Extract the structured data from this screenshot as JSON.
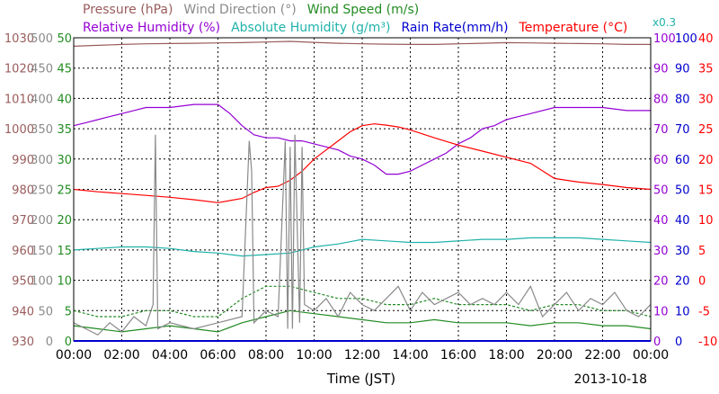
{
  "chart_data": {
    "type": "line",
    "legend_top": [
      {
        "label": "Pressure (hPa)",
        "color": "#9a5c5c"
      },
      {
        "label": "Wind Direction (°)",
        "color": "#8a8a8a"
      },
      {
        "label": "Wind Speed (m/s)",
        "color": "#228b22"
      }
    ],
    "legend_bottom": [
      {
        "label": "Relative Humidity (%)",
        "color": "#9400d3"
      },
      {
        "label": "Absolute Humidity (g/m³)",
        "color": "#20b2aa"
      },
      {
        "label": "Rain Rate(mm/h)",
        "color": "#0000cd"
      },
      {
        "label": "Temperature (°C)",
        "color": "#ff0000"
      }
    ],
    "abs_hum_scale_note": "x0.3",
    "xlabel": "Time (JST)",
    "date_label": "2013-10-18",
    "x_ticks": [
      "00:00",
      "02:00",
      "04:00",
      "06:00",
      "08:00",
      "10:00",
      "12:00",
      "14:00",
      "16:00",
      "18:00",
      "20:00",
      "22:00",
      "00:00"
    ],
    "grid": true,
    "axes": {
      "pressure": {
        "min": 930,
        "max": 1030,
        "ticks": [
          "1030",
          "1020",
          "1010",
          "1000",
          "990",
          "980",
          "970",
          "960",
          "950",
          "940",
          "930"
        ],
        "color": "#9a5c5c"
      },
      "wind_direction": {
        "min": 0,
        "max": 500,
        "ticks": [
          "500",
          "450",
          "400",
          "350",
          "300",
          "250",
          "200",
          "150",
          "100",
          "50",
          "0"
        ],
        "color": "#8a8a8a"
      },
      "wind_speed": {
        "min": 0,
        "max": 50,
        "ticks": [
          "50",
          "45",
          "40",
          "35",
          "30",
          "25",
          "20",
          "15",
          "10",
          "5",
          "0"
        ],
        "color": "#228b22"
      },
      "humidity": {
        "min": 0,
        "max": 100,
        "ticks": [
          "100",
          "90",
          "80",
          "70",
          "60",
          "50",
          "40",
          "30",
          "20",
          "10",
          "0"
        ],
        "color": "#9400d3"
      },
      "rain_rate": {
        "min": 0,
        "max": 100,
        "ticks": [
          "100",
          "90",
          "80",
          "70",
          "60",
          "50",
          "40",
          "30",
          "20",
          "10",
          "0"
        ],
        "color": "#0000cd"
      },
      "temperature": {
        "min": -10,
        "max": 40,
        "ticks": [
          "40",
          "35",
          "30",
          "25",
          "20",
          "15",
          "10",
          "5",
          "0",
          "-5",
          "-10"
        ],
        "color": "#ff0000"
      }
    },
    "series": [
      {
        "name": "Pressure (hPa)",
        "axis": "pressure",
        "color": "#9a5c5c",
        "x": [
          0,
          1,
          2,
          3,
          4,
          5,
          6,
          7,
          8,
          9,
          10,
          11,
          12,
          13,
          14,
          15,
          16,
          17,
          18,
          19,
          20,
          21,
          22,
          23,
          24
        ],
        "y": [
          1027.2,
          1027.5,
          1027.8,
          1028.0,
          1028.1,
          1028.2,
          1028.3,
          1028.4,
          1028.6,
          1028.8,
          1028.5,
          1028.2,
          1028.0,
          1027.9,
          1027.8,
          1027.8,
          1028.0,
          1028.2,
          1028.4,
          1028.3,
          1028.2,
          1028.1,
          1028.0,
          1027.8,
          1027.8
        ]
      },
      {
        "name": "Relative Humidity (%)",
        "axis": "humidity",
        "color": "#9400d3",
        "x": [
          0,
          0.5,
          1,
          1.5,
          2,
          2.5,
          3,
          4,
          5,
          5.5,
          6,
          6.5,
          7,
          7.5,
          8,
          8.5,
          9,
          9.5,
          10,
          10.5,
          11,
          11.5,
          12,
          12.5,
          13,
          13.5,
          14,
          14.5,
          15,
          15.5,
          16,
          16.5,
          17,
          17.5,
          18,
          18.5,
          19,
          20,
          21,
          22,
          23,
          24
        ],
        "y": [
          71,
          72,
          73,
          74,
          75,
          76,
          77,
          77,
          78,
          78,
          78,
          75,
          71,
          68,
          67,
          67,
          66,
          66,
          65,
          64,
          63,
          61,
          60,
          58,
          55,
          55,
          56,
          58,
          60,
          62,
          65,
          67,
          70,
          71,
          73,
          74,
          75,
          77,
          77,
          77,
          76,
          76
        ]
      },
      {
        "name": "Absolute Humidity (g/m³)",
        "axis": "humidity",
        "color": "#20b2aa",
        "x": [
          0,
          1,
          2,
          3,
          4,
          5,
          6,
          7,
          8,
          9,
          10,
          11,
          12,
          13,
          14,
          15,
          16,
          17,
          18,
          19,
          20,
          21,
          22,
          23,
          24
        ],
        "y": [
          30,
          30.5,
          31,
          31,
          30.5,
          29.5,
          29,
          28,
          28.5,
          29,
          31,
          32,
          33.5,
          33,
          32.5,
          32.5,
          33,
          33.5,
          33.5,
          34,
          34,
          34,
          33.5,
          33,
          32.5
        ]
      },
      {
        "name": "Temperature (°C)",
        "axis": "temperature",
        "color": "#ff0000",
        "x": [
          0,
          1,
          2,
          3,
          4,
          5,
          6,
          7,
          7.5,
          8,
          8.5,
          9,
          9.5,
          10,
          10.5,
          11,
          11.5,
          12,
          12.5,
          13,
          13.5,
          14,
          15,
          16,
          17,
          18,
          19,
          20,
          21,
          22,
          23,
          24
        ],
        "y": [
          15,
          14.6,
          14.3,
          14.0,
          13.7,
          13.3,
          12.8,
          13.5,
          14.5,
          15.3,
          15.5,
          16.5,
          18,
          20,
          21.5,
          23,
          24.5,
          25.5,
          25.8,
          25.6,
          25.3,
          24.8,
          23.5,
          22.3,
          21.3,
          20.3,
          19.3,
          16.8,
          16.2,
          15.8,
          15.3,
          15.0
        ]
      },
      {
        "name": "Wind Speed (m/s)",
        "axis": "wind_speed",
        "color": "#228b22",
        "x": [
          0,
          1,
          2,
          3,
          4,
          5,
          6,
          7,
          8,
          9,
          10,
          11,
          12,
          13,
          14,
          15,
          16,
          17,
          18,
          19,
          20,
          21,
          22,
          23,
          24
        ],
        "y": [
          2.5,
          2,
          1.5,
          2,
          2.5,
          2,
          1.5,
          3,
          4,
          5,
          4.5,
          4,
          3.5,
          3,
          3,
          3.5,
          3,
          3,
          3,
          2.5,
          3,
          3,
          2.5,
          2.5,
          2
        ]
      },
      {
        "name": "Wind Speed gust",
        "axis": "wind_speed",
        "color": "#228b22",
        "x": [
          0,
          1,
          2,
          3,
          4,
          5,
          6,
          7,
          8,
          9,
          10,
          11,
          12,
          13,
          14,
          15,
          16,
          17,
          18,
          19,
          20,
          21,
          22,
          23,
          24
        ],
        "y": [
          5,
          4,
          4,
          5,
          5,
          4,
          4,
          7,
          9,
          9,
          8,
          7,
          7,
          6,
          6,
          7,
          6,
          6,
          6,
          5,
          6,
          6,
          5,
          5,
          4
        ]
      },
      {
        "name": "Wind Direction (°)",
        "axis": "wind_direction",
        "color": "#8a8a8a",
        "x": [
          0,
          0.5,
          1,
          1.5,
          2,
          2.5,
          3,
          3.3,
          3.4,
          3.5,
          4,
          5,
          6,
          7,
          7.3,
          7.4,
          7.5,
          8,
          8.5,
          8.8,
          8.9,
          9.0,
          9.1,
          9.2,
          9.4,
          9.5,
          9.6,
          10,
          10.5,
          11,
          11.5,
          12,
          12.5,
          13,
          13.5,
          14,
          14.5,
          15,
          15.5,
          16,
          16.5,
          17,
          17.5,
          18,
          18.5,
          19,
          19.5,
          20,
          20.5,
          21,
          21.5,
          22,
          22.5,
          23,
          23.5,
          24
        ],
        "y": [
          30,
          20,
          10,
          30,
          15,
          40,
          25,
          60,
          340,
          20,
          30,
          20,
          30,
          40,
          330,
          280,
          30,
          50,
          40,
          330,
          20,
          320,
          20,
          340,
          30,
          320,
          60,
          50,
          70,
          40,
          80,
          60,
          50,
          70,
          90,
          50,
          80,
          60,
          70,
          80,
          60,
          70,
          60,
          80,
          60,
          90,
          40,
          60,
          80,
          50,
          70,
          60,
          80,
          50,
          40,
          60
        ]
      }
    ]
  }
}
